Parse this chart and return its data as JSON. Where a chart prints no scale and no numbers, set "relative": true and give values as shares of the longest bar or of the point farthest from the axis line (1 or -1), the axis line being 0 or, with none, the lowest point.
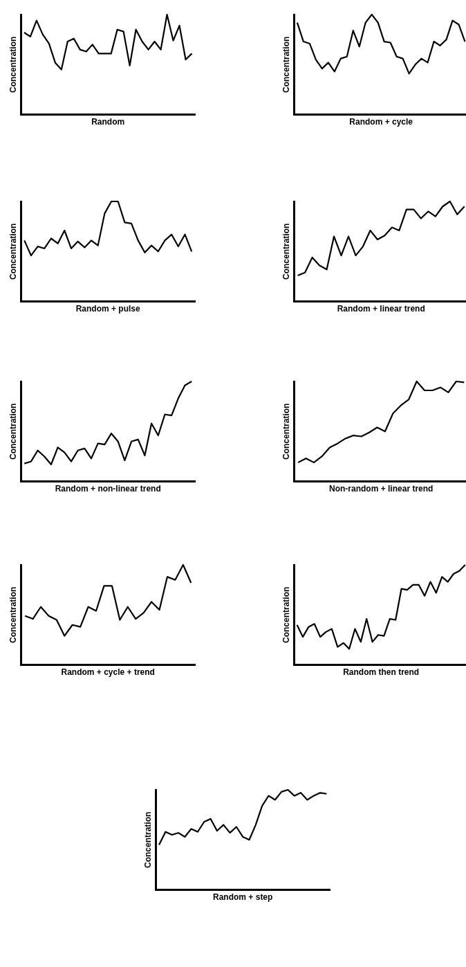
{
  "chart_data": [
    {
      "type": "line",
      "xlabel": "Random",
      "ylabel": "Concentration",
      "relative": true,
      "grid": false,
      "marker": "none",
      "line_style": "solid",
      "categories": [
        null,
        null,
        null,
        null,
        null,
        null,
        null,
        null,
        null,
        null,
        null,
        null,
        null,
        null,
        null,
        null,
        null,
        null,
        null,
        null,
        null,
        null,
        null,
        null,
        null,
        null,
        null,
        null
      ],
      "series": [
        {
          "color": "#000000",
          "values": [
            0.82,
            0.78,
            0.94,
            0.8,
            0.71,
            0.52,
            0.45,
            0.73,
            0.76,
            0.65,
            0.63,
            0.7,
            0.61,
            0.61,
            0.61,
            0.85,
            0.83,
            0.49,
            0.85,
            0.73,
            0.65,
            0.73,
            0.65,
            1,
            0.74,
            0.89,
            0.55,
            0.61
          ]
        }
      ]
    },
    {
      "type": "line",
      "xlabel": "Random + cycle",
      "ylabel": "Concentration",
      "relative": true,
      "grid": false,
      "marker": "none",
      "line_style": "solid",
      "categories": [
        null,
        null,
        null,
        null,
        null,
        null,
        null,
        null,
        null,
        null,
        null,
        null,
        null,
        null,
        null,
        null,
        null,
        null,
        null,
        null,
        null,
        null,
        null,
        null,
        null,
        null,
        null,
        null
      ],
      "series": [
        {
          "color": "#000000",
          "values": [
            0.92,
            0.73,
            0.71,
            0.55,
            0.46,
            0.52,
            0.43,
            0.56,
            0.58,
            0.84,
            0.68,
            0.92,
            1,
            0.92,
            0.73,
            0.72,
            0.58,
            0.56,
            0.41,
            0.5,
            0.56,
            0.52,
            0.73,
            0.69,
            0.75,
            0.94,
            0.9,
            0.73
          ]
        }
      ]
    },
    {
      "type": "line",
      "xlabel": "Random + pulse",
      "ylabel": "Concentration",
      "relative": true,
      "grid": false,
      "marker": "none",
      "line_style": "solid",
      "categories": [
        null,
        null,
        null,
        null,
        null,
        null,
        null,
        null,
        null,
        null,
        null,
        null,
        null,
        null,
        null,
        null,
        null,
        null,
        null,
        null,
        null,
        null,
        null,
        null,
        null,
        null
      ],
      "series": [
        {
          "color": "#000000",
          "values": [
            0.61,
            0.46,
            0.55,
            0.53,
            0.63,
            0.58,
            0.71,
            0.53,
            0.6,
            0.54,
            0.61,
            0.56,
            0.88,
            1,
            1,
            0.79,
            0.78,
            0.61,
            0.49,
            0.56,
            0.5,
            0.61,
            0.67,
            0.55,
            0.67,
            0.5
          ]
        }
      ]
    },
    {
      "type": "line",
      "xlabel": "Random + linear trend",
      "ylabel": "Concentration",
      "relative": true,
      "grid": false,
      "marker": "none",
      "line_style": "solid",
      "categories": [
        null,
        null,
        null,
        null,
        null,
        null,
        null,
        null,
        null,
        null,
        null,
        null,
        null,
        null,
        null,
        null,
        null,
        null,
        null,
        null,
        null,
        null,
        null,
        null
      ],
      "series": [
        {
          "color": "#000000",
          "values": [
            0.26,
            0.29,
            0.44,
            0.36,
            0.32,
            0.65,
            0.46,
            0.65,
            0.46,
            0.55,
            0.71,
            0.62,
            0.66,
            0.74,
            0.71,
            0.92,
            0.92,
            0.83,
            0.9,
            0.85,
            0.95,
            1,
            0.87,
            0.95
          ]
        }
      ]
    },
    {
      "type": "line",
      "xlabel": "Random + non-linear trend",
      "ylabel": "Concentration",
      "relative": true,
      "grid": false,
      "marker": "none",
      "line_style": "solid",
      "categories": [
        null,
        null,
        null,
        null,
        null,
        null,
        null,
        null,
        null,
        null,
        null,
        null,
        null,
        null,
        null,
        null,
        null,
        null,
        null,
        null,
        null,
        null,
        null,
        null,
        null,
        null
      ],
      "series": [
        {
          "color": "#000000",
          "values": [
            0.18,
            0.2,
            0.31,
            0.25,
            0.17,
            0.34,
            0.29,
            0.2,
            0.31,
            0.33,
            0.23,
            0.38,
            0.37,
            0.48,
            0.4,
            0.21,
            0.4,
            0.42,
            0.26,
            0.58,
            0.46,
            0.67,
            0.66,
            0.83,
            0.96,
            1
          ]
        }
      ]
    },
    {
      "type": "line",
      "xlabel": "Non-random + linear trend",
      "ylabel": "Concentration",
      "relative": true,
      "grid": false,
      "marker": "none",
      "line_style": "solid",
      "categories": [
        null,
        null,
        null,
        null,
        null,
        null,
        null,
        null,
        null,
        null,
        null,
        null,
        null,
        null,
        null,
        null,
        null,
        null,
        null,
        null,
        null,
        null
      ],
      "series": [
        {
          "color": "#000000",
          "values": [
            0.19,
            0.23,
            0.19,
            0.25,
            0.34,
            0.38,
            0.43,
            0.46,
            0.45,
            0.49,
            0.54,
            0.5,
            0.68,
            0.76,
            0.82,
            1,
            0.91,
            0.91,
            0.94,
            0.89,
            1,
            0.99
          ]
        }
      ]
    },
    {
      "type": "line",
      "xlabel": "Random + cycle + trend",
      "ylabel": "Concentration",
      "relative": true,
      "grid": false,
      "marker": "none",
      "line_style": "solid",
      "categories": [
        null,
        null,
        null,
        null,
        null,
        null,
        null,
        null,
        null,
        null,
        null,
        null,
        null,
        null,
        null,
        null,
        null,
        null,
        null,
        null,
        null,
        null
      ],
      "series": [
        {
          "color": "#000000",
          "values": [
            0.49,
            0.46,
            0.58,
            0.49,
            0.45,
            0.29,
            0.4,
            0.38,
            0.58,
            0.54,
            0.79,
            0.79,
            0.45,
            0.58,
            0.46,
            0.52,
            0.63,
            0.55,
            0.88,
            0.85,
            1,
            0.82
          ]
        }
      ]
    },
    {
      "type": "line",
      "xlabel": "Random then trend",
      "ylabel": "Concentration",
      "relative": true,
      "grid": false,
      "marker": "none",
      "line_style": "solid",
      "categories": [
        null,
        null,
        null,
        null,
        null,
        null,
        null,
        null,
        null,
        null,
        null,
        null,
        null,
        null,
        null,
        null,
        null,
        null,
        null,
        null,
        null,
        null,
        null,
        null,
        null,
        null,
        null,
        null,
        null,
        null
      ],
      "series": [
        {
          "color": "#000000",
          "values": [
            0.4,
            0.28,
            0.38,
            0.41,
            0.28,
            0.33,
            0.36,
            0.18,
            0.22,
            0.16,
            0.36,
            0.23,
            0.46,
            0.23,
            0.3,
            0.29,
            0.46,
            0.45,
            0.76,
            0.75,
            0.8,
            0.8,
            0.69,
            0.83,
            0.72,
            0.88,
            0.83,
            0.91,
            0.94,
            1
          ]
        }
      ]
    },
    {
      "type": "line",
      "xlabel": "Random + step",
      "ylabel": "Concentration",
      "relative": true,
      "grid": false,
      "marker": "none",
      "line_style": "solid",
      "categories": [
        null,
        null,
        null,
        null,
        null,
        null,
        null,
        null,
        null,
        null,
        null,
        null,
        null,
        null,
        null,
        null,
        null,
        null,
        null,
        null,
        null,
        null,
        null,
        null,
        null,
        null,
        null
      ],
      "series": [
        {
          "color": "#000000",
          "values": [
            0.45,
            0.58,
            0.55,
            0.57,
            0.53,
            0.61,
            0.58,
            0.68,
            0.71,
            0.59,
            0.65,
            0.57,
            0.63,
            0.53,
            0.5,
            0.65,
            0.84,
            0.94,
            0.9,
            0.98,
            1,
            0.94,
            0.97,
            0.9,
            0.94,
            0.97,
            0.96
          ]
        }
      ]
    }
  ]
}
